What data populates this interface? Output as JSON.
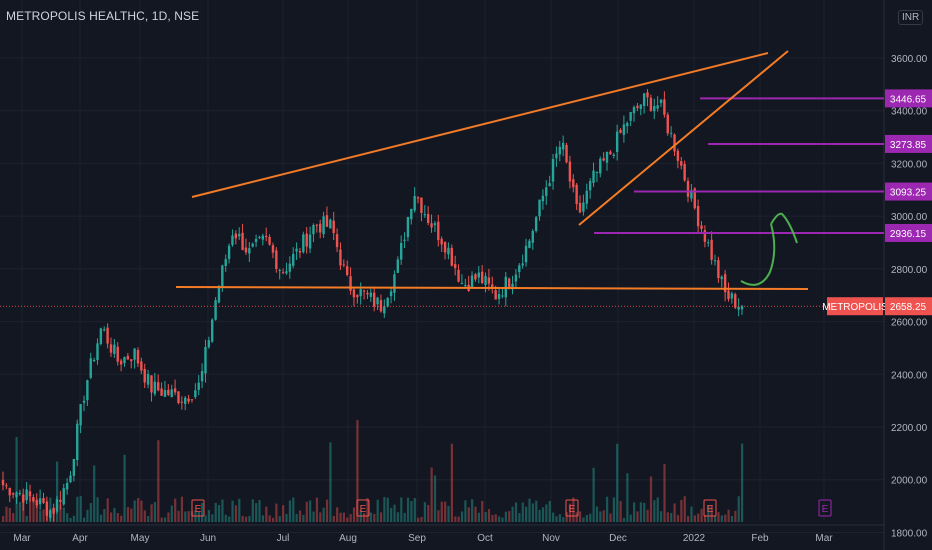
{
  "header": {
    "title": "METROPOLIS HEALTHC, 1D, NSE",
    "currency": "INR"
  },
  "colors": {
    "background": "#131722",
    "up": "#26a69a",
    "down": "#ef5350",
    "trendline": "#f57c26",
    "level": "#9c27b0",
    "arrow": "#4caf50"
  },
  "chart_data": {
    "type": "candlestick",
    "symbol": "METROPOLIS",
    "last_price": 2658.25,
    "last_price_label": "2658.25",
    "ylim": [
      1760,
      3700
    ],
    "y_ticks": [
      {
        "value": 1800,
        "label": "1800.00"
      },
      {
        "value": 2000,
        "label": "2000.00"
      },
      {
        "value": 2200,
        "label": "2200.00"
      },
      {
        "value": 2400,
        "label": "2400.00"
      },
      {
        "value": 2600,
        "label": "2600.00"
      },
      {
        "value": 2800,
        "label": "2800.00"
      },
      {
        "value": 3000,
        "label": "3000.00"
      },
      {
        "value": 3200,
        "label": "3200.00"
      },
      {
        "value": 3400,
        "label": "3400.00"
      },
      {
        "value": 3600,
        "label": "3600.00"
      }
    ],
    "x_ticks": [
      "Mar",
      "Apr",
      "May",
      "Jun",
      "Jul",
      "Aug",
      "Sep",
      "Oct",
      "Nov",
      "Dec",
      "2022",
      "Feb",
      "Mar"
    ],
    "price_path": [
      [
        "Mar",
        1980
      ],
      [
        "Mar",
        1950
      ],
      [
        "Mar",
        1920
      ],
      [
        "Mar",
        1880
      ],
      [
        "Apr",
        2000
      ],
      [
        "Apr",
        2350
      ],
      [
        "Apr",
        2580
      ],
      [
        "Apr",
        2450
      ],
      [
        "May",
        2480
      ],
      [
        "May",
        2350
      ],
      [
        "May",
        2330
      ],
      [
        "May",
        2310
      ],
      [
        "Jun",
        2360
      ],
      [
        "Jun",
        2700
      ],
      [
        "Jun",
        2950
      ],
      [
        "Jun",
        2860
      ],
      [
        "Jul",
        2910
      ],
      [
        "Jul",
        2790
      ],
      [
        "Jul",
        2870
      ],
      [
        "Jul",
        2970
      ],
      [
        "Aug",
        2960
      ],
      [
        "Aug",
        2740
      ],
      [
        "Aug",
        2700
      ],
      [
        "Aug",
        2660
      ],
      [
        "Sep",
        2800
      ],
      [
        "Sep",
        3100
      ],
      [
        "Sep",
        2980
      ],
      [
        "Sep",
        2890
      ],
      [
        "Oct",
        2740
      ],
      [
        "Oct",
        2770
      ],
      [
        "Oct",
        2700
      ],
      [
        "Oct",
        2770
      ],
      [
        "Nov",
        2900
      ],
      [
        "Nov",
        3100
      ],
      [
        "Nov",
        3280
      ],
      [
        "Nov",
        3000
      ],
      [
        "Dec",
        3150
      ],
      [
        "Dec",
        3240
      ],
      [
        "Dec",
        3360
      ],
      [
        "Dec",
        3440
      ],
      [
        "2022",
        3420
      ],
      [
        "2022",
        3250
      ],
      [
        "2022",
        3050
      ],
      [
        "2022",
        2880
      ],
      [
        "2022",
        2700
      ],
      [
        "2022",
        2658.25
      ]
    ],
    "levels": [
      {
        "value": 3446.65,
        "label": "3446.65"
      },
      {
        "value": 3273.85,
        "label": "3273.85"
      },
      {
        "value": 3093.25,
        "label": "3093.25"
      },
      {
        "value": 2936.15,
        "label": "2936.15"
      }
    ],
    "event_markers": [
      "E",
      "E",
      "E",
      "E",
      "E"
    ],
    "grid": true,
    "volume": true
  }
}
